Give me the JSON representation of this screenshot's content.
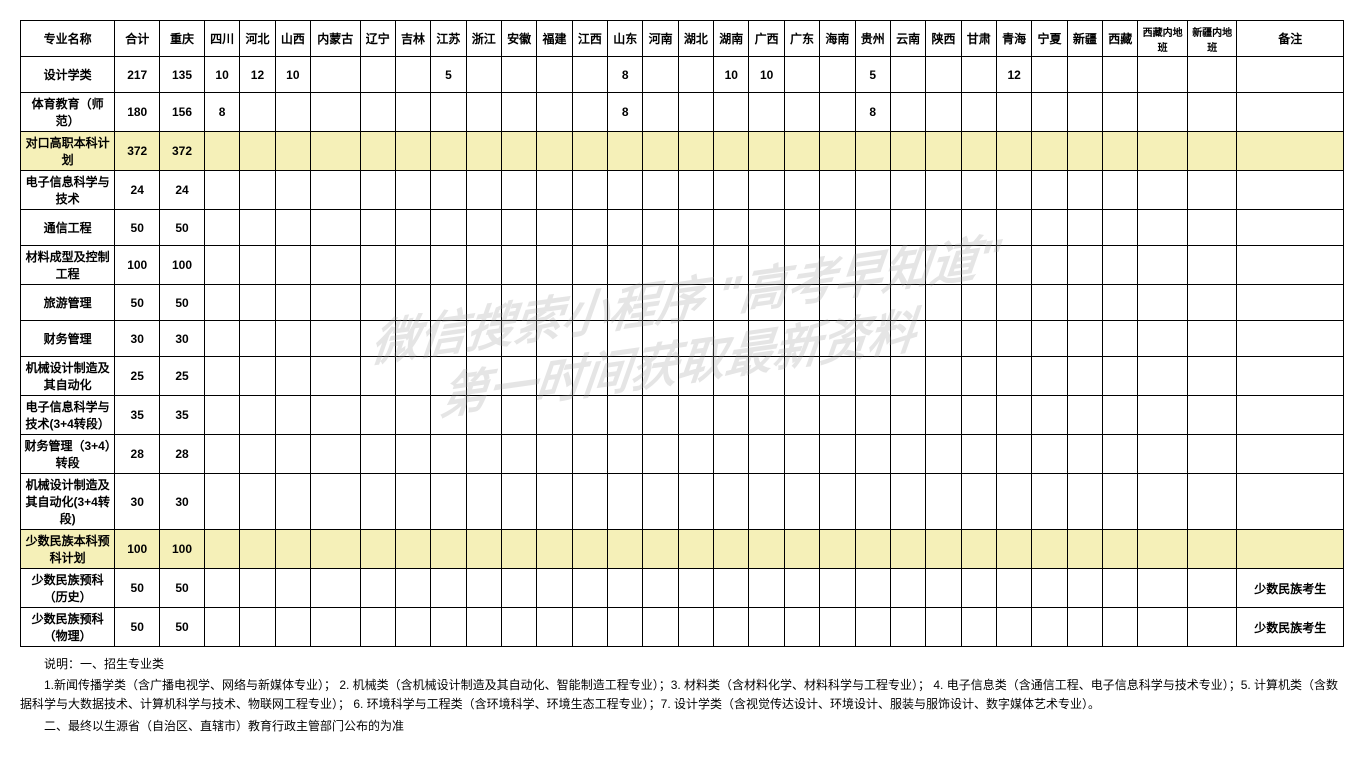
{
  "headers": [
    "专业名称",
    "合计",
    "重庆",
    "四川",
    "河北",
    "山西",
    "内蒙古",
    "辽宁",
    "吉林",
    "江苏",
    "浙江",
    "安徽",
    "福建",
    "江西",
    "山东",
    "河南",
    "湖北",
    "湖南",
    "广西",
    "广东",
    "海南",
    "贵州",
    "云南",
    "陕西",
    "甘肃",
    "青海",
    "宁夏",
    "新疆",
    "西藏",
    "西藏内地班",
    "新疆内地班",
    "备注"
  ],
  "rows": [
    {
      "highlight": false,
      "cells": [
        "设计学类",
        "217",
        "135",
        "10",
        "12",
        "10",
        "",
        "",
        "",
        "5",
        "",
        "",
        "",
        "",
        "8",
        "",
        "",
        "10",
        "10",
        "",
        "",
        "5",
        "",
        "",
        "",
        "12",
        "",
        "",
        "",
        "",
        "",
        ""
      ]
    },
    {
      "highlight": false,
      "cells": [
        "体育教育（师范）",
        "180",
        "156",
        "8",
        "",
        "",
        "",
        "",
        "",
        "",
        "",
        "",
        "",
        "",
        "8",
        "",
        "",
        "",
        "",
        "",
        "",
        "8",
        "",
        "",
        "",
        "",
        "",
        "",
        "",
        "",
        "",
        ""
      ]
    },
    {
      "highlight": true,
      "cells": [
        "对口高职本科计划",
        "372",
        "372",
        "",
        "",
        "",
        "",
        "",
        "",
        "",
        "",
        "",
        "",
        "",
        "",
        "",
        "",
        "",
        "",
        "",
        "",
        "",
        "",
        "",
        "",
        "",
        "",
        "",
        "",
        "",
        "",
        ""
      ]
    },
    {
      "highlight": false,
      "cells": [
        "电子信息科学与技术",
        "24",
        "24",
        "",
        "",
        "",
        "",
        "",
        "",
        "",
        "",
        "",
        "",
        "",
        "",
        "",
        "",
        "",
        "",
        "",
        "",
        "",
        "",
        "",
        "",
        "",
        "",
        "",
        "",
        "",
        "",
        ""
      ]
    },
    {
      "highlight": false,
      "cells": [
        "通信工程",
        "50",
        "50",
        "",
        "",
        "",
        "",
        "",
        "",
        "",
        "",
        "",
        "",
        "",
        "",
        "",
        "",
        "",
        "",
        "",
        "",
        "",
        "",
        "",
        "",
        "",
        "",
        "",
        "",
        "",
        "",
        ""
      ]
    },
    {
      "highlight": false,
      "cells": [
        "材料成型及控制工程",
        "100",
        "100",
        "",
        "",
        "",
        "",
        "",
        "",
        "",
        "",
        "",
        "",
        "",
        "",
        "",
        "",
        "",
        "",
        "",
        "",
        "",
        "",
        "",
        "",
        "",
        "",
        "",
        "",
        "",
        "",
        ""
      ]
    },
    {
      "highlight": false,
      "cells": [
        "旅游管理",
        "50",
        "50",
        "",
        "",
        "",
        "",
        "",
        "",
        "",
        "",
        "",
        "",
        "",
        "",
        "",
        "",
        "",
        "",
        "",
        "",
        "",
        "",
        "",
        "",
        "",
        "",
        "",
        "",
        "",
        "",
        ""
      ]
    },
    {
      "highlight": false,
      "cells": [
        "财务管理",
        "30",
        "30",
        "",
        "",
        "",
        "",
        "",
        "",
        "",
        "",
        "",
        "",
        "",
        "",
        "",
        "",
        "",
        "",
        "",
        "",
        "",
        "",
        "",
        "",
        "",
        "",
        "",
        "",
        "",
        "",
        ""
      ]
    },
    {
      "highlight": false,
      "cells": [
        "机械设计制造及其自动化",
        "25",
        "25",
        "",
        "",
        "",
        "",
        "",
        "",
        "",
        "",
        "",
        "",
        "",
        "",
        "",
        "",
        "",
        "",
        "",
        "",
        "",
        "",
        "",
        "",
        "",
        "",
        "",
        "",
        "",
        "",
        ""
      ]
    },
    {
      "highlight": false,
      "cells": [
        "电子信息科学与技术(3+4转段）",
        "35",
        "35",
        "",
        "",
        "",
        "",
        "",
        "",
        "",
        "",
        "",
        "",
        "",
        "",
        "",
        "",
        "",
        "",
        "",
        "",
        "",
        "",
        "",
        "",
        "",
        "",
        "",
        "",
        "",
        "",
        ""
      ]
    },
    {
      "highlight": false,
      "cells": [
        "财务管理（3+4）转段",
        "28",
        "28",
        "",
        "",
        "",
        "",
        "",
        "",
        "",
        "",
        "",
        "",
        "",
        "",
        "",
        "",
        "",
        "",
        "",
        "",
        "",
        "",
        "",
        "",
        "",
        "",
        "",
        "",
        "",
        "",
        ""
      ]
    },
    {
      "highlight": false,
      "cells": [
        "机械设计制造及其自动化(3+4转段)",
        "30",
        "30",
        "",
        "",
        "",
        "",
        "",
        "",
        "",
        "",
        "",
        "",
        "",
        "",
        "",
        "",
        "",
        "",
        "",
        "",
        "",
        "",
        "",
        "",
        "",
        "",
        "",
        "",
        "",
        "",
        ""
      ]
    },
    {
      "highlight": true,
      "cells": [
        "少数民族本科预科计划",
        "100",
        "100",
        "",
        "",
        "",
        "",
        "",
        "",
        "",
        "",
        "",
        "",
        "",
        "",
        "",
        "",
        "",
        "",
        "",
        "",
        "",
        "",
        "",
        "",
        "",
        "",
        "",
        "",
        "",
        "",
        ""
      ]
    },
    {
      "highlight": false,
      "cells": [
        "少数民族预科（历史）",
        "50",
        "50",
        "",
        "",
        "",
        "",
        "",
        "",
        "",
        "",
        "",
        "",
        "",
        "",
        "",
        "",
        "",
        "",
        "",
        "",
        "",
        "",
        "",
        "",
        "",
        "",
        "",
        "",
        "",
        "",
        "少数民族考生"
      ]
    },
    {
      "highlight": false,
      "cells": [
        "少数民族预科（物理）",
        "50",
        "50",
        "",
        "",
        "",
        "",
        "",
        "",
        "",
        "",
        "",
        "",
        "",
        "",
        "",
        "",
        "",
        "",
        "",
        "",
        "",
        "",
        "",
        "",
        "",
        "",
        "",
        "",
        "",
        "",
        "少数民族考生"
      ]
    }
  ],
  "notes": {
    "title": "说明：一、招生专业类",
    "line1": "1.新闻传播学类（含广播电视学、网络与新媒体专业）；  2. 机械类（含机械设计制造及其自动化、智能制造工程专业）；3. 材料类（含材料化学、材料科学与工程专业）；  4. 电子信息类（含通信工程、电子信息科学与技术专业）；5. 计算机类（含数据科学与大数据技术、计算机科学与技术、物联网工程专业）；  6. 环境科学与工程类（含环境科学、环境生态工程专业）；7. 设计学类（含视觉传达设计、环境设计、服装与服饰设计、数字媒体艺术专业）。",
    "line2": "二、最终以生源省（自治区、直辖市）教育行政主管部门公布的为准"
  },
  "watermark": {
    "line1": "微信搜索小程序 \"高考早知道\"",
    "line2": "第一时间获取最新资料"
  },
  "colors": {
    "highlight": "#f5f0b8",
    "border": "#000000",
    "background": "#ffffff",
    "watermark": "rgba(150,150,150,0.25)"
  },
  "columnWidths": {
    "name": 80,
    "total": 38,
    "province": 30,
    "provinceWide": 42,
    "remark": 90
  }
}
